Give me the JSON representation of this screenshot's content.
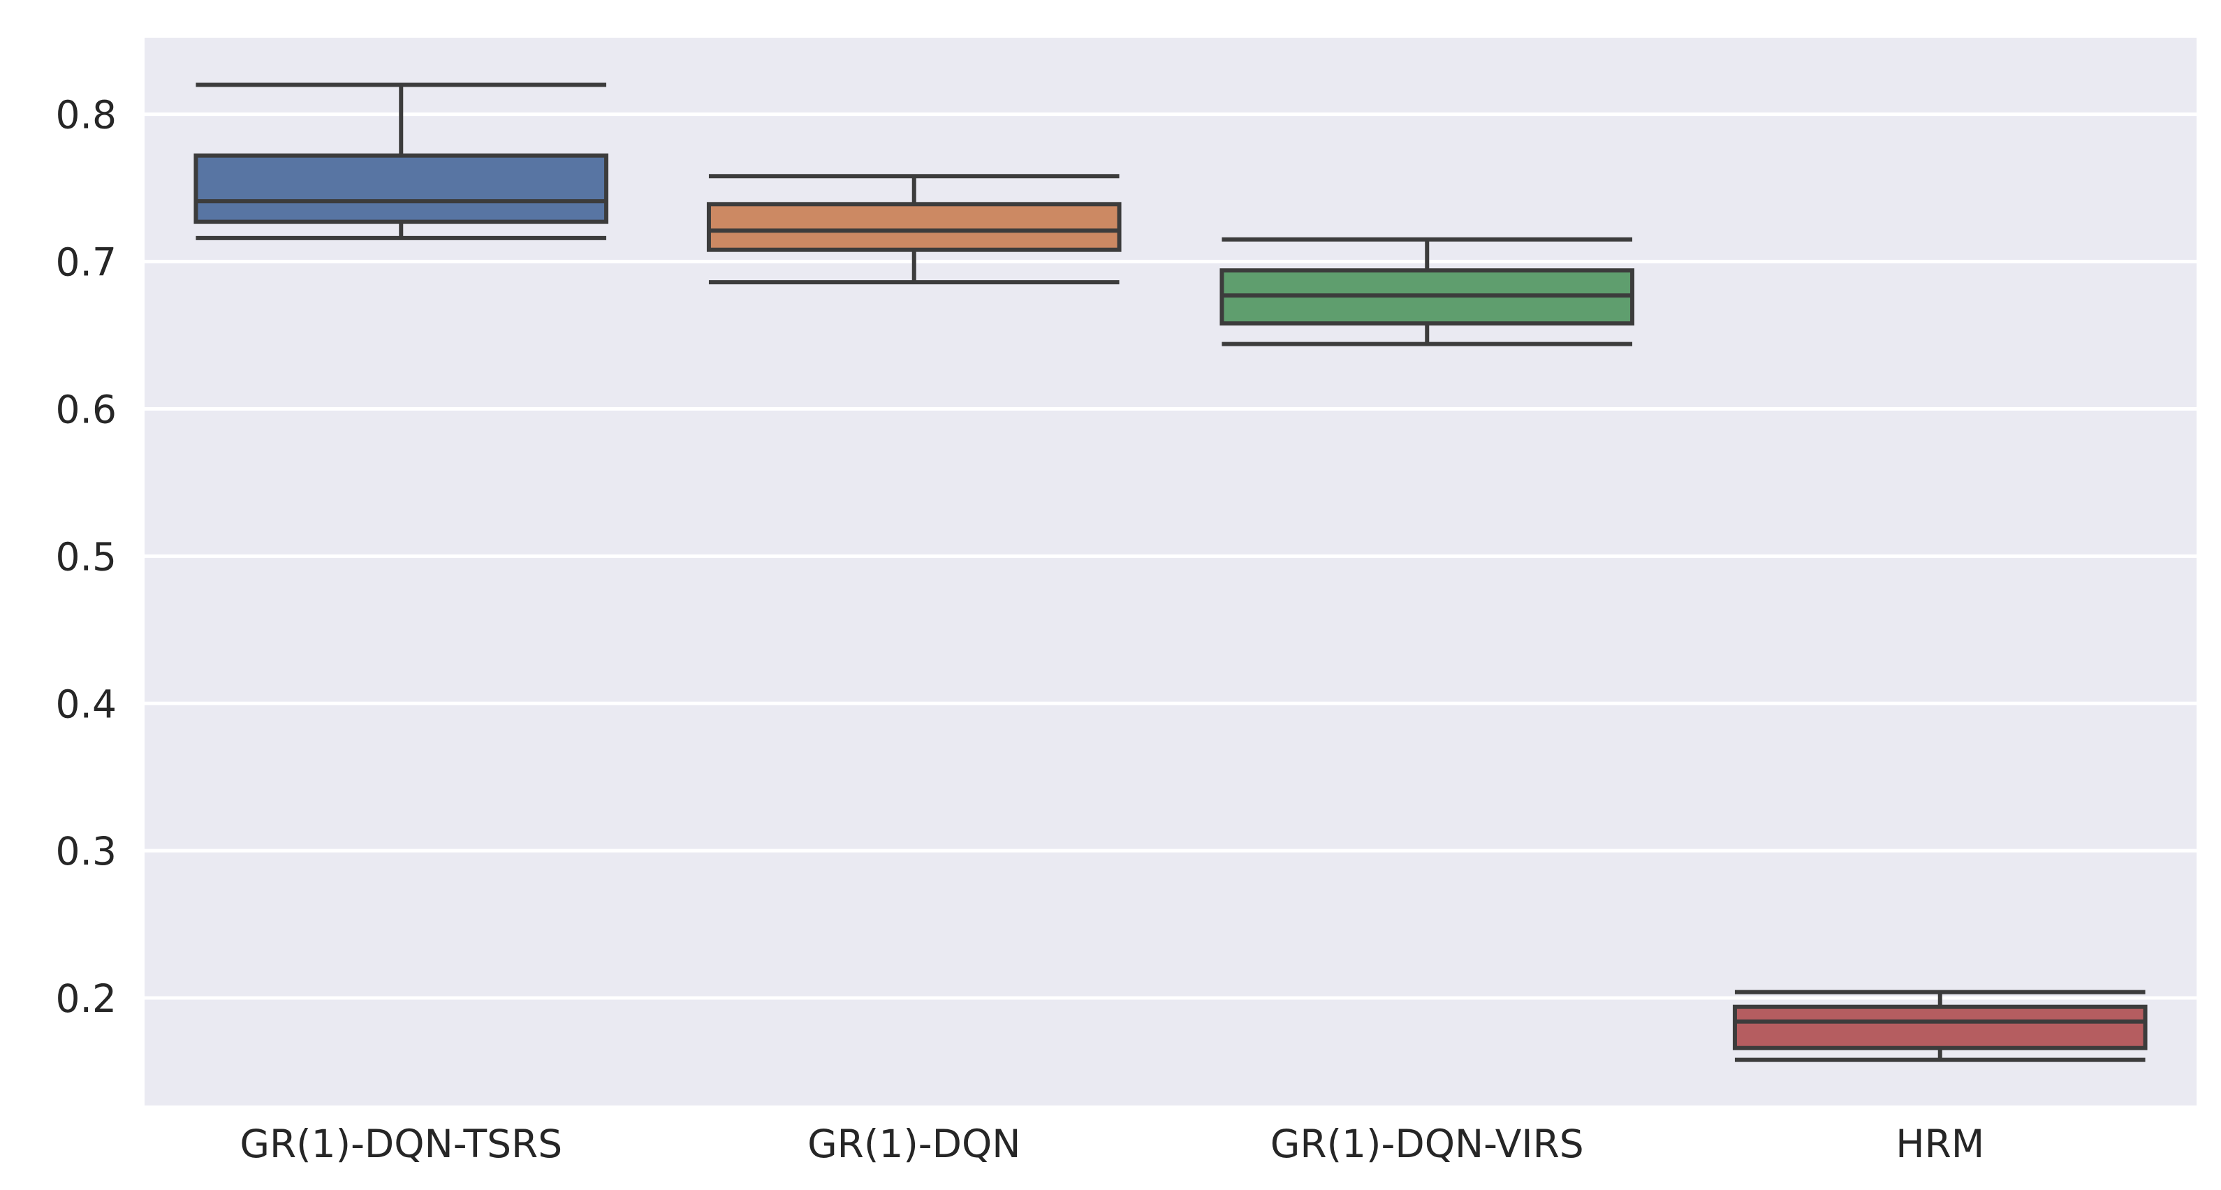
{
  "chart_data": {
    "type": "boxplot",
    "title": "",
    "xlabel": "",
    "ylabel": "",
    "categories": [
      "GR(1)-DQN-TSRS",
      "GR(1)-DQN",
      "GR(1)-DQN-VIRS",
      "HRM"
    ],
    "series": [
      {
        "name": "GR(1)-DQN-TSRS",
        "whisker_low": 0.716,
        "q1": 0.727,
        "median": 0.741,
        "q3": 0.772,
        "whisker_high": 0.82,
        "color": "#5875A3"
      },
      {
        "name": "GR(1)-DQN",
        "whisker_low": 0.686,
        "q1": 0.708,
        "median": 0.721,
        "q3": 0.739,
        "whisker_high": 0.758,
        "color": "#CC8963"
      },
      {
        "name": "GR(1)-DQN-VIRS",
        "whisker_low": 0.644,
        "q1": 0.658,
        "median": 0.677,
        "q3": 0.694,
        "whisker_high": 0.715,
        "color": "#5F9E6E"
      },
      {
        "name": "HRM",
        "whisker_low": 0.158,
        "q1": 0.166,
        "median": 0.184,
        "q3": 0.194,
        "whisker_high": 0.204,
        "color": "#B55D60"
      }
    ],
    "y_ticks": [
      0.8,
      0.7,
      0.6,
      0.5,
      0.4,
      0.3,
      0.2
    ],
    "y_tick_labels": [
      "0.8",
      "0.7",
      "0.6",
      "0.5",
      "0.4",
      "0.3",
      "0.2"
    ],
    "ylim": [
      0.127,
      0.852
    ],
    "grid": "horizontal-white-lines",
    "legend": "none",
    "style": {
      "plot_background": "#EAEAF2",
      "figure_background": "#FFFFFF",
      "gridline_color": "#FFFFFF",
      "box_line_color": "#3C3C3C",
      "tick_label_color": "#262626"
    }
  }
}
